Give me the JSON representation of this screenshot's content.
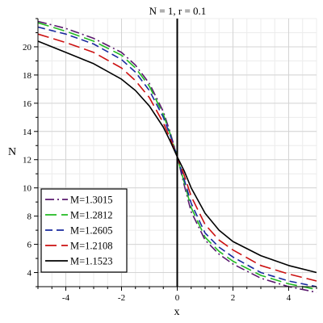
{
  "chart_data": {
    "type": "line",
    "title": "N = 1, r = 0.1",
    "xlabel": "x",
    "ylabel": "N",
    "xlim": [
      -5,
      5
    ],
    "ylim": [
      3,
      22
    ],
    "x_ticks": [
      -4,
      -2,
      0,
      2,
      4
    ],
    "y_ticks": [
      4,
      6,
      8,
      10,
      12,
      14,
      16,
      18,
      20
    ],
    "grid": true,
    "legend_position": "bottom-left",
    "x": [
      -5,
      -4,
      -3,
      -2,
      -1.5,
      -1,
      -0.5,
      -0.25,
      0,
      0.25,
      0.5,
      1,
      1.5,
      2,
      3,
      4,
      5
    ],
    "series": [
      {
        "name": "M=1.3015",
        "color": "#5a1a6e",
        "dash": "dashdot",
        "values": [
          21.8,
          21.3,
          20.6,
          19.6,
          18.7,
          17.4,
          15.4,
          13.9,
          12.2,
          10.2,
          8.3,
          6.3,
          5.3,
          4.6,
          3.6,
          3.0,
          2.6
        ]
      },
      {
        "name": "M=1.2812",
        "color": "#22bb22",
        "dash": "longdash",
        "values": [
          21.7,
          21.1,
          20.4,
          19.4,
          18.5,
          17.2,
          15.2,
          13.8,
          12.2,
          10.4,
          8.6,
          6.5,
          5.5,
          4.8,
          3.8,
          3.2,
          2.8
        ]
      },
      {
        "name": "M=1.2605",
        "color": "#1a2a9e",
        "dash": "dash",
        "values": [
          21.4,
          20.9,
          20.2,
          19.1,
          18.2,
          16.9,
          15.0,
          13.7,
          12.2,
          10.6,
          8.9,
          6.8,
          5.8,
          5.1,
          4.0,
          3.4,
          3.0
        ]
      },
      {
        "name": "M=1.2108",
        "color": "#cc1111",
        "dash": "longdash",
        "values": [
          20.9,
          20.3,
          19.6,
          18.5,
          17.6,
          16.4,
          14.6,
          13.5,
          12.2,
          10.9,
          9.4,
          7.4,
          6.3,
          5.6,
          4.5,
          3.9,
          3.4
        ]
      },
      {
        "name": "M=1.1523",
        "color": "#000000",
        "dash": "solid",
        "values": [
          20.4,
          19.6,
          18.8,
          17.7,
          16.9,
          15.8,
          14.3,
          13.3,
          12.2,
          11.2,
          10.0,
          8.2,
          7.0,
          6.2,
          5.2,
          4.5,
          4.0
        ]
      }
    ]
  }
}
